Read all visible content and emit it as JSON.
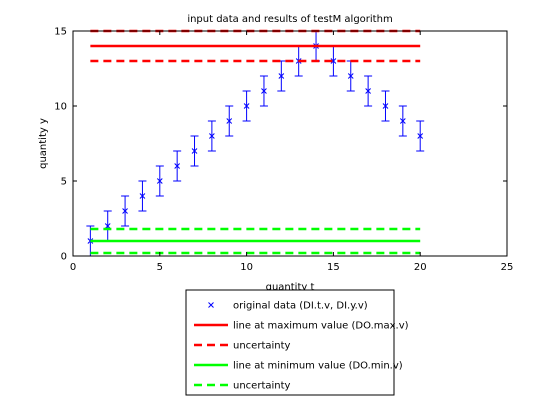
{
  "chart_data": {
    "type": "scatter",
    "title": "input data and results of testM algorithm",
    "xlabel": "quantity t",
    "ylabel": "quantity y",
    "xlim": [
      0,
      25
    ],
    "ylim": [
      0,
      15
    ],
    "xticks": [
      0,
      5,
      10,
      15,
      20,
      25
    ],
    "yticks": [
      0,
      5,
      10,
      15
    ],
    "grid": false,
    "legend_position": "bottom-outside",
    "series": [
      {
        "name": "original data (DI.t.v, DI.y.v)",
        "kind": "errorbar",
        "marker": "x",
        "color": "#0000ff",
        "x": [
          1,
          2,
          3,
          4,
          5,
          6,
          7,
          8,
          9,
          10,
          11,
          12,
          13,
          14,
          15,
          16,
          17,
          18,
          19,
          20
        ],
        "y": [
          1,
          2,
          3,
          4,
          5,
          6,
          7,
          8,
          9,
          10,
          11,
          12,
          13,
          14,
          13,
          12,
          11,
          10,
          9,
          8
        ],
        "err": 1
      },
      {
        "name": "line at maximum value (DO.max.v)",
        "kind": "line",
        "style": "solid",
        "color": "#ff0000",
        "x": [
          1,
          20
        ],
        "y": [
          14,
          14
        ]
      },
      {
        "name": "uncertainty",
        "kind": "line",
        "style": "dashed",
        "color": "#ff0000",
        "x": [
          1,
          20
        ],
        "y": [
          15,
          15
        ],
        "y_lower": [
          13,
          13
        ]
      },
      {
        "name": "line at minimum value (DO.min.v)",
        "kind": "line",
        "style": "solid",
        "color": "#00ff00",
        "x": [
          1,
          20
        ],
        "y": [
          1,
          1
        ]
      },
      {
        "name": "uncertainty",
        "kind": "line",
        "style": "dashed",
        "color": "#00ff00",
        "x": [
          1,
          20
        ],
        "y": [
          1.8,
          1.8
        ],
        "y_lower": [
          0.2,
          0.2
        ]
      }
    ]
  }
}
